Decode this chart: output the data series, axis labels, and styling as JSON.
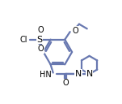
{
  "bg_color": "#ffffff",
  "line_color": "#6878b0",
  "text_color": "#000000",
  "bond_lw": 1.6,
  "figsize": [
    1.51,
    1.28
  ],
  "dpi": 100,
  "xlim": [
    -0.5,
    10.5
  ],
  "ylim": [
    -0.5,
    8.5
  ]
}
